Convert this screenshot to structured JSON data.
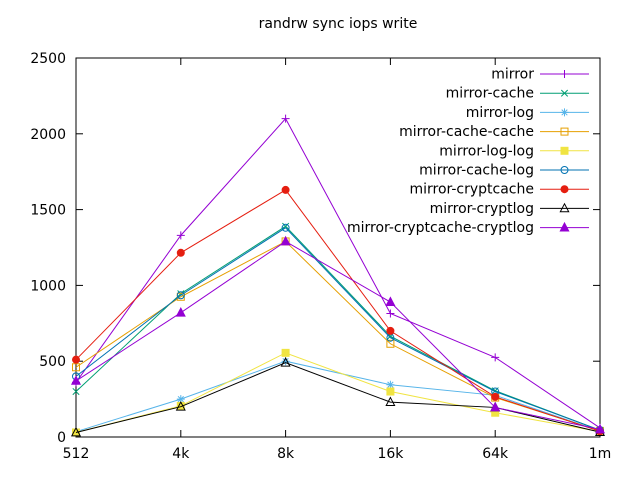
{
  "window": {
    "background": "#ffffff",
    "foreground": "#000000"
  },
  "chart_data": {
    "type": "line",
    "title": "randrw sync iops write",
    "xlabel": "",
    "ylabel": "",
    "categories": [
      "512",
      "4k",
      "8k",
      "16k",
      "64k",
      "1m"
    ],
    "ylim": [
      0,
      2500
    ],
    "yticks": [
      0,
      500,
      1000,
      1500,
      2000,
      2500
    ],
    "grid": false,
    "legend_position": "top-right-inside",
    "axis_color": "#000000",
    "series": [
      {
        "name": "mirror",
        "color": "#9400d3",
        "marker": "plus",
        "values": [
          360,
          1330,
          2100,
          815,
          525,
          60
        ]
      },
      {
        "name": "mirror-cache",
        "color": "#009e73",
        "marker": "cross",
        "values": [
          300,
          945,
          1390,
          665,
          305,
          45
        ]
      },
      {
        "name": "mirror-log",
        "color": "#56b4e9",
        "marker": "asterisk",
        "values": [
          35,
          250,
          500,
          345,
          275,
          40
        ]
      },
      {
        "name": "mirror-cache-cache",
        "color": "#e69f00",
        "marker": "square-open",
        "values": [
          460,
          925,
          1290,
          615,
          260,
          40
        ]
      },
      {
        "name": "mirror-log-log",
        "color": "#f0e442",
        "marker": "square-filled",
        "values": [
          30,
          205,
          555,
          300,
          160,
          35
        ]
      },
      {
        "name": "mirror-cache-log",
        "color": "#0072b2",
        "marker": "circle-open",
        "values": [
          400,
          935,
          1380,
          655,
          300,
          45
        ]
      },
      {
        "name": "mirror-cryptcache",
        "color": "#e51e10",
        "marker": "circle-filled",
        "values": [
          510,
          1215,
          1630,
          700,
          265,
          38
        ]
      },
      {
        "name": "mirror-cryptlog",
        "color": "#000000",
        "marker": "triangle-open",
        "values": [
          30,
          200,
          490,
          230,
          195,
          32
        ]
      },
      {
        "name": "mirror-cryptcache-cryptlog",
        "color": "#9400d3",
        "marker": "triangle-filled",
        "values": [
          370,
          820,
          1290,
          890,
          195,
          50
        ]
      }
    ]
  }
}
